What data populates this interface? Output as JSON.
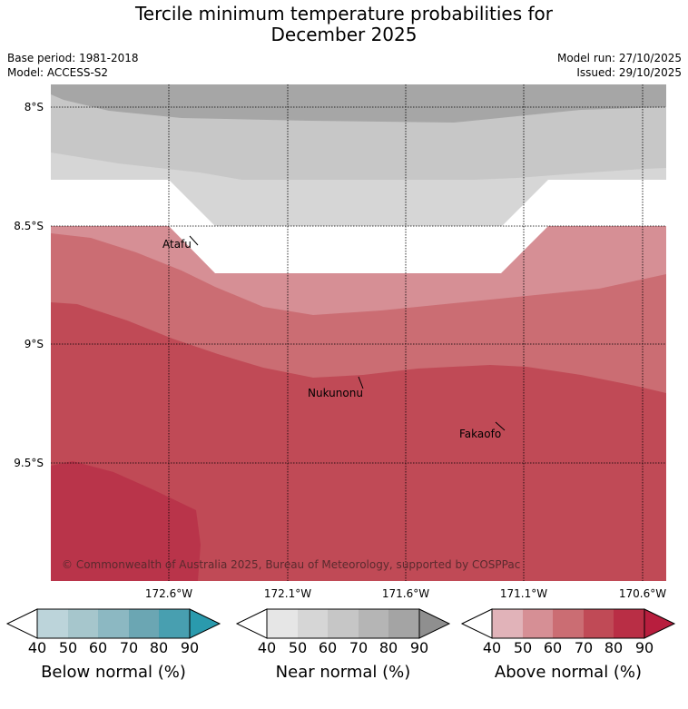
{
  "title_line1": "Tercile minimum temperature probabilities for",
  "title_line2": "December 2025",
  "base_period": "Base period: 1981-2018",
  "model": "Model: ACCESS-S2",
  "model_run": "Model run: 27/10/2025",
  "issued": "Issued: 29/10/2025",
  "map": {
    "lat_labels": [
      "8°S",
      "8.5°S",
      "9°S",
      "9.5°S"
    ],
    "lon_labels": [
      "172.6°W",
      "172.1°W",
      "171.6°W",
      "171.1°W",
      "170.6°W"
    ],
    "places": {
      "atafu": "Atafu",
      "nukunonu": "Nukunonu",
      "fakaofo": "Fakaofo"
    },
    "copyright": "© Commonwealth of Australia 2025, Bureau of Meteorology, supported by COSPPac"
  },
  "colorbars": [
    {
      "label": "Below normal (%)",
      "ticks": [
        "40",
        "50",
        "60",
        "70",
        "80",
        "90"
      ],
      "colors": [
        "#bcd4da",
        "#a6c6cc",
        "#8cb8c2",
        "#6ba6b3",
        "#489fb0",
        "#2a9aad"
      ]
    },
    {
      "label": "Near normal (%)",
      "ticks": [
        "40",
        "50",
        "60",
        "70",
        "80",
        "90"
      ],
      "colors": [
        "#e6e6e6",
        "#d6d6d6",
        "#c6c6c6",
        "#b5b5b5",
        "#a4a4a4",
        "#8f8f8f"
      ]
    },
    {
      "label": "Above normal (%)",
      "ticks": [
        "40",
        "50",
        "60",
        "70",
        "80",
        "90"
      ],
      "colors": [
        "#e1b3b9",
        "#d68f95",
        "#cb6d73",
        "#c04a56",
        "#b92e45",
        "#b81e3e"
      ]
    }
  ]
}
